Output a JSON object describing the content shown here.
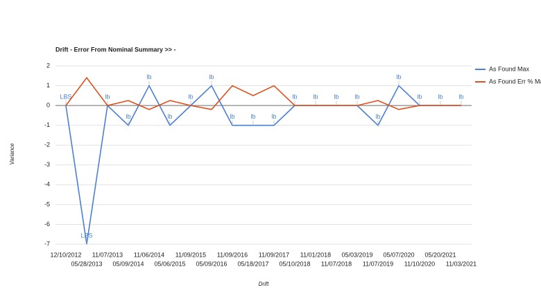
{
  "chart_data": {
    "type": "line",
    "title": "Drift - Error From Nominal Summary >> -",
    "x_label": "Drift",
    "y_label": "Variance",
    "categories": [
      "12/10/2012",
      "05/28/2013",
      "11/07/2013",
      "05/09/2014",
      "11/06/2014",
      "05/06/2015",
      "11/09/2015",
      "05/09/2016",
      "11/09/2016",
      "05/18/2017",
      "11/09/2017",
      "05/10/2018",
      "11/01/2018",
      "11/07/2018",
      "05/03/2019",
      "11/07/2019",
      "05/07/2020",
      "11/10/2020",
      "05/20/2021",
      "11/03/2021"
    ],
    "series": [
      {
        "name": "As Found Max",
        "color": "#4a7fd6",
        "values": [
          0,
          -7,
          0,
          -1,
          1,
          -1,
          0,
          1,
          -1,
          -1,
          -1,
          0,
          0,
          0,
          0,
          -1,
          1,
          0,
          0,
          0
        ],
        "point_labels": [
          "LBS",
          "LBS",
          "lb",
          "lb",
          "lb",
          "lb",
          "lb",
          "lb",
          "lb",
          "lb",
          "lb",
          "lb",
          "lb",
          "lb",
          "lb",
          "lb",
          "lb",
          "lb",
          "lb",
          "lb"
        ]
      },
      {
        "name": "As Found Err % Max",
        "color": "#e0501a",
        "values": [
          0,
          1.4,
          0,
          0.25,
          -0.2,
          0.25,
          0,
          -0.2,
          1,
          0.5,
          1,
          0,
          0,
          0,
          0,
          0.25,
          -0.2,
          0,
          0,
          0
        ]
      }
    ],
    "ylim": [
      -7,
      2
    ],
    "yticks": [
      -7,
      -6,
      -5,
      -4,
      -3,
      -2,
      -1,
      0,
      1,
      2
    ],
    "grid": true,
    "legend": "right"
  }
}
